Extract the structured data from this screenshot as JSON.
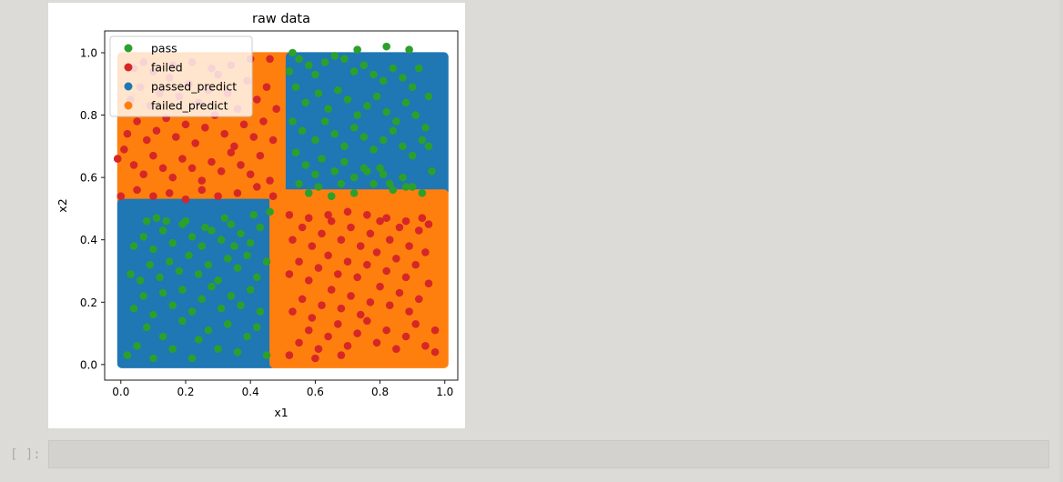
{
  "notebook": {
    "prompt": "[ ]:"
  },
  "colors": {
    "pass": "#2ca02c",
    "failed": "#d62728",
    "passed_predict": "#1f77b4",
    "failed_predict": "#ff7f0e",
    "background": "#dcdbd8"
  },
  "chart_data": {
    "type": "scatter",
    "title": "raw data",
    "xlabel": "x1",
    "ylabel": "x2",
    "xlim": [
      -0.05,
      1.04
    ],
    "ylim": [
      -0.05,
      1.07
    ],
    "xticks": [
      0.0,
      0.2,
      0.4,
      0.6,
      0.8,
      1.0
    ],
    "yticks": [
      0.0,
      0.2,
      0.4,
      0.6,
      0.8,
      1.0
    ],
    "xtick_labels": [
      "0.0",
      "0.2",
      "0.4",
      "0.6",
      "0.8",
      "1.0"
    ],
    "ytick_labels": [
      "0.0",
      "0.2",
      "0.4",
      "0.6",
      "0.8",
      "1.0"
    ],
    "grid": false,
    "legend_position": "upper-left",
    "legend": [
      "pass",
      "failed",
      "passed_predict",
      "failed_predict"
    ],
    "predicted_regions": [
      {
        "name": "failed_predict",
        "x": [
          0.0,
          0.52
        ],
        "y": [
          0.52,
          0.99
        ]
      },
      {
        "name": "passed_predict",
        "x": [
          0.52,
          1.0
        ],
        "y": [
          0.55,
          0.99
        ]
      },
      {
        "name": "passed_predict",
        "x": [
          0.0,
          0.47
        ],
        "y": [
          0.0,
          0.52
        ]
      },
      {
        "name": "failed_predict",
        "x": [
          0.47,
          1.0
        ],
        "y": [
          0.0,
          0.55
        ]
      }
    ],
    "series": [
      {
        "name": "pass",
        "points": [
          [
            0.53,
            1.0
          ],
          [
            0.73,
            1.01
          ],
          [
            0.82,
            1.02
          ],
          [
            0.89,
            1.01
          ],
          [
            0.52,
            0.94
          ],
          [
            0.55,
            0.98
          ],
          [
            0.58,
            0.96
          ],
          [
            0.6,
            0.93
          ],
          [
            0.63,
            0.97
          ],
          [
            0.66,
            0.99
          ],
          [
            0.69,
            0.98
          ],
          [
            0.72,
            0.94
          ],
          [
            0.75,
            0.96
          ],
          [
            0.78,
            0.93
          ],
          [
            0.81,
            0.91
          ],
          [
            0.84,
            0.95
          ],
          [
            0.87,
            0.92
          ],
          [
            0.9,
            0.89
          ],
          [
            0.92,
            0.95
          ],
          [
            0.95,
            0.86
          ],
          [
            0.54,
            0.89
          ],
          [
            0.57,
            0.84
          ],
          [
            0.61,
            0.87
          ],
          [
            0.64,
            0.82
          ],
          [
            0.67,
            0.88
          ],
          [
            0.7,
            0.85
          ],
          [
            0.73,
            0.8
          ],
          [
            0.76,
            0.83
          ],
          [
            0.79,
            0.86
          ],
          [
            0.82,
            0.81
          ],
          [
            0.85,
            0.78
          ],
          [
            0.88,
            0.84
          ],
          [
            0.91,
            0.8
          ],
          [
            0.94,
            0.76
          ],
          [
            0.53,
            0.78
          ],
          [
            0.56,
            0.75
          ],
          [
            0.6,
            0.72
          ],
          [
            0.63,
            0.78
          ],
          [
            0.66,
            0.74
          ],
          [
            0.69,
            0.7
          ],
          [
            0.72,
            0.76
          ],
          [
            0.75,
            0.73
          ],
          [
            0.78,
            0.69
          ],
          [
            0.81,
            0.72
          ],
          [
            0.84,
            0.75
          ],
          [
            0.87,
            0.7
          ],
          [
            0.9,
            0.67
          ],
          [
            0.93,
            0.72
          ],
          [
            0.95,
            0.7
          ],
          [
            0.54,
            0.68
          ],
          [
            0.57,
            0.64
          ],
          [
            0.6,
            0.61
          ],
          [
            0.62,
            0.66
          ],
          [
            0.66,
            0.62
          ],
          [
            0.69,
            0.65
          ],
          [
            0.72,
            0.6
          ],
          [
            0.75,
            0.63
          ],
          [
            0.78,
            0.58
          ],
          [
            0.81,
            0.61
          ],
          [
            0.84,
            0.56
          ],
          [
            0.87,
            0.6
          ],
          [
            0.9,
            0.57
          ],
          [
            0.93,
            0.55
          ],
          [
            0.96,
            0.62
          ],
          [
            0.55,
            0.58
          ],
          [
            0.58,
            0.55
          ],
          [
            0.61,
            0.57
          ],
          [
            0.65,
            0.54
          ],
          [
            0.68,
            0.58
          ],
          [
            0.72,
            0.55
          ],
          [
            0.76,
            0.62
          ],
          [
            0.8,
            0.63
          ],
          [
            0.83,
            0.58
          ],
          [
            0.88,
            0.57
          ],
          [
            0.02,
            0.03
          ],
          [
            0.05,
            0.06
          ],
          [
            0.08,
            0.12
          ],
          [
            0.1,
            0.02
          ],
          [
            0.13,
            0.09
          ],
          [
            0.16,
            0.05
          ],
          [
            0.19,
            0.14
          ],
          [
            0.22,
            0.02
          ],
          [
            0.24,
            0.08
          ],
          [
            0.27,
            0.11
          ],
          [
            0.3,
            0.05
          ],
          [
            0.33,
            0.13
          ],
          [
            0.36,
            0.04
          ],
          [
            0.39,
            0.09
          ],
          [
            0.42,
            0.12
          ],
          [
            0.45,
            0.03
          ],
          [
            0.04,
            0.18
          ],
          [
            0.07,
            0.22
          ],
          [
            0.1,
            0.16
          ],
          [
            0.13,
            0.23
          ],
          [
            0.16,
            0.19
          ],
          [
            0.19,
            0.24
          ],
          [
            0.22,
            0.17
          ],
          [
            0.25,
            0.21
          ],
          [
            0.28,
            0.25
          ],
          [
            0.31,
            0.18
          ],
          [
            0.34,
            0.22
          ],
          [
            0.37,
            0.19
          ],
          [
            0.4,
            0.24
          ],
          [
            0.43,
            0.17
          ],
          [
            0.03,
            0.29
          ],
          [
            0.06,
            0.27
          ],
          [
            0.09,
            0.32
          ],
          [
            0.12,
            0.28
          ],
          [
            0.15,
            0.33
          ],
          [
            0.18,
            0.3
          ],
          [
            0.21,
            0.35
          ],
          [
            0.24,
            0.29
          ],
          [
            0.27,
            0.32
          ],
          [
            0.3,
            0.27
          ],
          [
            0.33,
            0.34
          ],
          [
            0.36,
            0.31
          ],
          [
            0.39,
            0.35
          ],
          [
            0.42,
            0.28
          ],
          [
            0.45,
            0.33
          ],
          [
            0.04,
            0.38
          ],
          [
            0.07,
            0.41
          ],
          [
            0.1,
            0.37
          ],
          [
            0.13,
            0.43
          ],
          [
            0.16,
            0.39
          ],
          [
            0.19,
            0.45
          ],
          [
            0.22,
            0.41
          ],
          [
            0.25,
            0.38
          ],
          [
            0.28,
            0.43
          ],
          [
            0.31,
            0.4
          ],
          [
            0.34,
            0.45
          ],
          [
            0.37,
            0.42
          ],
          [
            0.4,
            0.39
          ],
          [
            0.43,
            0.44
          ],
          [
            0.08,
            0.46
          ],
          [
            0.11,
            0.47
          ],
          [
            0.14,
            0.46
          ],
          [
            0.2,
            0.46
          ],
          [
            0.26,
            0.44
          ],
          [
            0.32,
            0.47
          ],
          [
            0.35,
            0.38
          ],
          [
            0.41,
            0.48
          ],
          [
            0.46,
            0.49
          ]
        ]
      },
      {
        "name": "failed",
        "points": [
          [
            -0.01,
            0.66
          ],
          [
            0.01,
            0.69
          ],
          [
            0.04,
            0.64
          ],
          [
            0.07,
            0.61
          ],
          [
            0.1,
            0.67
          ],
          [
            0.13,
            0.63
          ],
          [
            0.16,
            0.6
          ],
          [
            0.19,
            0.66
          ],
          [
            0.22,
            0.63
          ],
          [
            0.25,
            0.59
          ],
          [
            0.28,
            0.65
          ],
          [
            0.31,
            0.62
          ],
          [
            0.34,
            0.68
          ],
          [
            0.37,
            0.64
          ],
          [
            0.4,
            0.61
          ],
          [
            0.43,
            0.67
          ],
          [
            0.46,
            0.59
          ],
          [
            0.02,
            0.74
          ],
          [
            0.05,
            0.78
          ],
          [
            0.08,
            0.72
          ],
          [
            0.11,
            0.75
          ],
          [
            0.14,
            0.79
          ],
          [
            0.17,
            0.73
          ],
          [
            0.2,
            0.77
          ],
          [
            0.23,
            0.71
          ],
          [
            0.26,
            0.76
          ],
          [
            0.29,
            0.8
          ],
          [
            0.32,
            0.74
          ],
          [
            0.35,
            0.7
          ],
          [
            0.38,
            0.77
          ],
          [
            0.41,
            0.73
          ],
          [
            0.44,
            0.78
          ],
          [
            0.47,
            0.72
          ],
          [
            0.03,
            0.85
          ],
          [
            0.06,
            0.89
          ],
          [
            0.09,
            0.83
          ],
          [
            0.12,
            0.87
          ],
          [
            0.15,
            0.92
          ],
          [
            0.18,
            0.86
          ],
          [
            0.21,
            0.9
          ],
          [
            0.24,
            0.84
          ],
          [
            0.27,
            0.88
          ],
          [
            0.3,
            0.93
          ],
          [
            0.33,
            0.87
          ],
          [
            0.36,
            0.82
          ],
          [
            0.39,
            0.91
          ],
          [
            0.42,
            0.85
          ],
          [
            0.45,
            0.89
          ],
          [
            0.48,
            0.82
          ],
          [
            0.04,
            0.95
          ],
          [
            0.07,
            0.97
          ],
          [
            0.1,
            0.94
          ],
          [
            0.16,
            0.96
          ],
          [
            0.22,
            0.97
          ],
          [
            0.28,
            0.95
          ],
          [
            0.34,
            0.96
          ],
          [
            0.4,
            0.98
          ],
          [
            0.46,
            0.98
          ],
          [
            0.0,
            0.54
          ],
          [
            0.05,
            0.56
          ],
          [
            0.1,
            0.54
          ],
          [
            0.15,
            0.55
          ],
          [
            0.2,
            0.53
          ],
          [
            0.25,
            0.56
          ],
          [
            0.3,
            0.54
          ],
          [
            0.36,
            0.55
          ],
          [
            0.42,
            0.57
          ],
          [
            0.47,
            0.54
          ],
          [
            0.52,
            0.03
          ],
          [
            0.55,
            0.07
          ],
          [
            0.58,
            0.11
          ],
          [
            0.61,
            0.05
          ],
          [
            0.64,
            0.09
          ],
          [
            0.67,
            0.13
          ],
          [
            0.7,
            0.06
          ],
          [
            0.73,
            0.1
          ],
          [
            0.76,
            0.14
          ],
          [
            0.79,
            0.07
          ],
          [
            0.82,
            0.11
          ],
          [
            0.85,
            0.05
          ],
          [
            0.88,
            0.09
          ],
          [
            0.91,
            0.13
          ],
          [
            0.94,
            0.06
          ],
          [
            0.97,
            0.11
          ],
          [
            0.53,
            0.17
          ],
          [
            0.56,
            0.21
          ],
          [
            0.59,
            0.15
          ],
          [
            0.62,
            0.19
          ],
          [
            0.65,
            0.24
          ],
          [
            0.68,
            0.18
          ],
          [
            0.71,
            0.22
          ],
          [
            0.74,
            0.16
          ],
          [
            0.77,
            0.2
          ],
          [
            0.8,
            0.25
          ],
          [
            0.83,
            0.19
          ],
          [
            0.86,
            0.23
          ],
          [
            0.89,
            0.17
          ],
          [
            0.92,
            0.21
          ],
          [
            0.95,
            0.26
          ],
          [
            0.52,
            0.29
          ],
          [
            0.55,
            0.33
          ],
          [
            0.58,
            0.27
          ],
          [
            0.61,
            0.31
          ],
          [
            0.64,
            0.35
          ],
          [
            0.67,
            0.29
          ],
          [
            0.7,
            0.33
          ],
          [
            0.73,
            0.28
          ],
          [
            0.76,
            0.32
          ],
          [
            0.79,
            0.36
          ],
          [
            0.82,
            0.3
          ],
          [
            0.85,
            0.34
          ],
          [
            0.88,
            0.28
          ],
          [
            0.91,
            0.32
          ],
          [
            0.94,
            0.36
          ],
          [
            0.53,
            0.4
          ],
          [
            0.56,
            0.44
          ],
          [
            0.59,
            0.38
          ],
          [
            0.62,
            0.42
          ],
          [
            0.65,
            0.46
          ],
          [
            0.68,
            0.4
          ],
          [
            0.71,
            0.44
          ],
          [
            0.74,
            0.38
          ],
          [
            0.77,
            0.42
          ],
          [
            0.8,
            0.46
          ],
          [
            0.83,
            0.4
          ],
          [
            0.86,
            0.44
          ],
          [
            0.89,
            0.38
          ],
          [
            0.92,
            0.43
          ],
          [
            0.95,
            0.45
          ],
          [
            0.52,
            0.48
          ],
          [
            0.58,
            0.47
          ],
          [
            0.64,
            0.48
          ],
          [
            0.7,
            0.49
          ],
          [
            0.76,
            0.48
          ],
          [
            0.82,
            0.47
          ],
          [
            0.88,
            0.46
          ],
          [
            0.93,
            0.47
          ],
          [
            0.97,
            0.04
          ],
          [
            0.6,
            0.02
          ],
          [
            0.68,
            0.03
          ]
        ]
      }
    ]
  }
}
